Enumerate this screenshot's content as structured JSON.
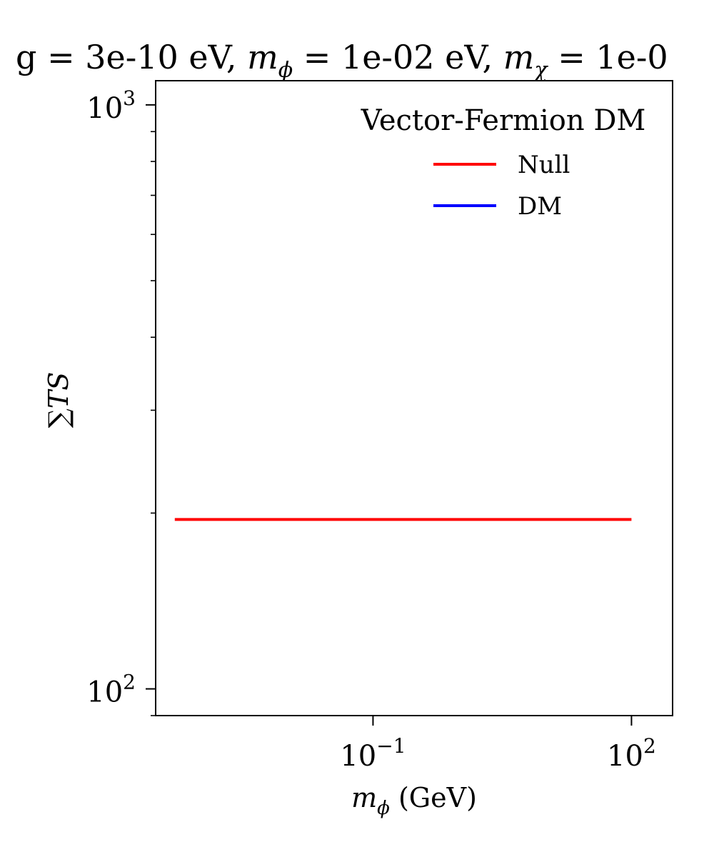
{
  "chart_data": {
    "type": "line",
    "title": "g = 3e-10 eV, m_ϕ = 1e-02 eV, m_χ = 1e-0",
    "title_parts": {
      "g": "g = 3e-10 eV, ",
      "mphi_var": "m",
      "mphi_sub": "ϕ",
      "mphi_val": " = 1e-02 eV, ",
      "mchi_var": "m",
      "mchi_sub": "χ",
      "mchi_val": " = 1e-0"
    },
    "xlabel": {
      "var": "m",
      "sub": "ϕ",
      "unit": " (GeV)"
    },
    "ylabel": "∑TS",
    "xscale": "log",
    "yscale": "log",
    "xlim": [
      0.0003,
      300
    ],
    "ylim": [
      90,
      1100
    ],
    "x_ticks": [
      {
        "value": 0.1,
        "base": "10",
        "exp": "−1"
      },
      {
        "value": 100,
        "base": "10",
        "exp": "2"
      }
    ],
    "y_ticks": [
      {
        "value": 100,
        "base": "10",
        "exp": "2"
      },
      {
        "value": 1000,
        "base": "10",
        "exp": "3"
      }
    ],
    "legend": {
      "title": "Vector-Fermion DM",
      "placement": "top-right",
      "entries": [
        {
          "label": "Null",
          "color": "#ff0000"
        },
        {
          "label": "DM",
          "color": "#0000ff"
        }
      ]
    },
    "series": [
      {
        "name": "Null",
        "color": "#ff0000",
        "x": [
          0.0005,
          100
        ],
        "y": [
          195,
          195
        ]
      },
      {
        "name": "DM",
        "color": "#0000ff",
        "x": [],
        "y": []
      }
    ],
    "grid": false
  }
}
